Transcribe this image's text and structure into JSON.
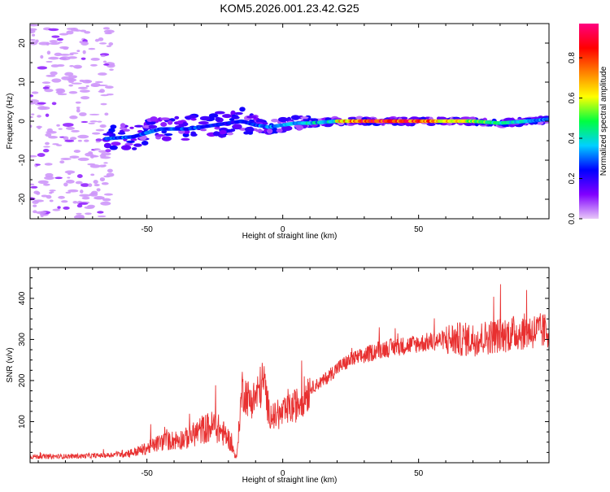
{
  "title": "KOM5.2026.001.23.42.G25",
  "chart_data": [
    {
      "type": "heatmap",
      "xlabel": "Height of straight line (km)",
      "ylabel": "Frequency (Hz)",
      "xlim": [
        -93,
        98
      ],
      "ylim": [
        -25,
        25
      ],
      "xticks": [
        -50,
        0,
        50
      ],
      "yticks": [
        -20,
        -10,
        0,
        10,
        20
      ],
      "colorbar": {
        "label": "Normalized spectral amplitude",
        "range": [
          0,
          0.97
        ],
        "ticks": [
          "0.0",
          "0.2",
          "0.4",
          "0.6",
          "0.8"
        ],
        "colormap": [
          "#e8c8f8",
          "#8000ff",
          "#0000ff",
          "#00d0ff",
          "#00ff40",
          "#ffff00",
          "#ff8000",
          "#ff0000",
          "#ff0080"
        ]
      },
      "ridge": {
        "x": [
          -65,
          -55,
          -45,
          -35,
          -25,
          -15,
          -10,
          -5,
          0,
          5,
          10,
          20,
          30,
          40,
          50,
          60,
          70,
          80,
          90,
          98
        ],
        "y": [
          -4.5,
          -4.0,
          -2.0,
          -2.0,
          -1.0,
          0.0,
          -1.0,
          -1.5,
          -1.0,
          -0.5,
          -0.5,
          0.0,
          0.0,
          0.0,
          0.0,
          0.0,
          0.0,
          -0.5,
          0.0,
          0.5
        ],
        "amplitude": [
          0.3,
          0.3,
          0.3,
          0.3,
          0.25,
          0.25,
          0.3,
          0.35,
          0.35,
          0.4,
          0.5,
          0.65,
          0.9,
          0.9,
          0.85,
          0.7,
          0.6,
          0.45,
          0.4,
          0.3
        ]
      },
      "noise_region_x": [
        -93,
        -63
      ]
    },
    {
      "type": "line",
      "xlabel": "Height of straight line (km)",
      "ylabel": "SNR (v/v)",
      "xlim": [
        -93,
        98
      ],
      "ylim": [
        0,
        475
      ],
      "xticks": [
        -50,
        0,
        50
      ],
      "yticks": [
        100,
        200,
        300,
        400
      ],
      "color": "#e83030",
      "series": [
        {
          "x": [
            -93,
            -85,
            -75,
            -65,
            -55,
            -50,
            -45,
            -40,
            -35,
            -30,
            -25,
            -20,
            -17,
            -15,
            -12,
            -10,
            -7,
            -5,
            -2,
            0,
            5,
            10,
            15,
            20,
            25,
            30,
            35,
            40,
            50,
            60,
            70,
            80,
            90,
            98
          ],
          "y": [
            15,
            15,
            16,
            18,
            25,
            35,
            50,
            55,
            60,
            80,
            90,
            60,
            10,
            180,
            150,
            160,
            200,
            120,
            110,
            120,
            140,
            180,
            200,
            230,
            250,
            260,
            275,
            280,
            290,
            300,
            300,
            310,
            320,
            320
          ]
        }
      ]
    }
  ]
}
